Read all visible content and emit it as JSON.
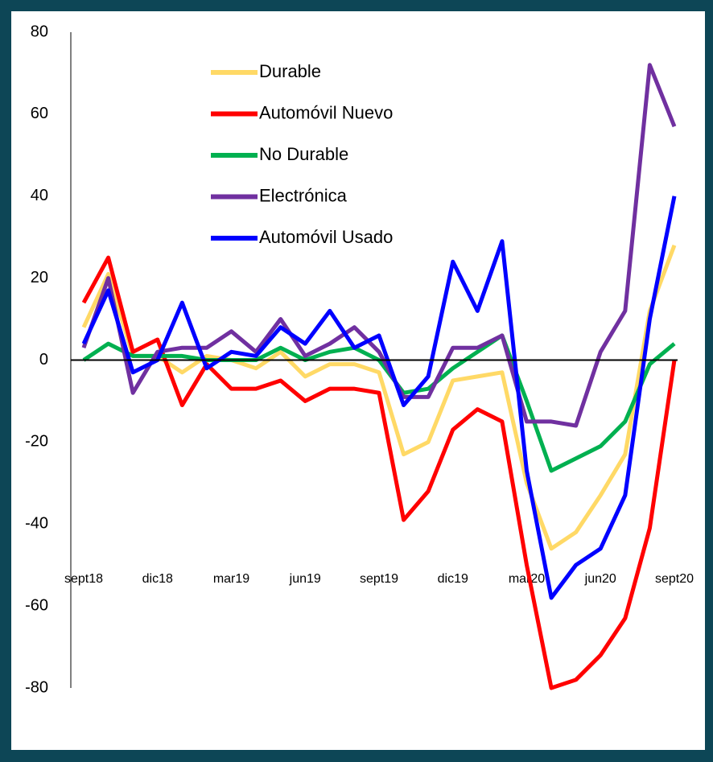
{
  "chart_data": {
    "type": "line",
    "categories": [
      "sept18",
      null,
      null,
      "dic18",
      null,
      null,
      "mar19",
      null,
      null,
      "jun19",
      null,
      null,
      "sept19",
      null,
      null,
      "dic19",
      null,
      null,
      "mar20",
      null,
      null,
      "jun20",
      null,
      null,
      "sept20"
    ],
    "series": [
      {
        "name": "Durable",
        "color": "#ffd966",
        "values": [
          8,
          21,
          1,
          1,
          -3,
          1,
          0,
          -2,
          2,
          -4,
          -1,
          -1,
          -3,
          -23,
          -20,
          -5,
          -4,
          -3,
          -30,
          -46,
          -42,
          -33,
          -23,
          12,
          28
        ]
      },
      {
        "name": "Automóvil Nuevo",
        "color": "#ff0000",
        "values": [
          14,
          25,
          2,
          5,
          -11,
          -1,
          -7,
          -7,
          -5,
          -10,
          -7,
          -7,
          -8,
          -39,
          -32,
          -17,
          -12,
          -15,
          -50,
          -80,
          -78,
          -72,
          -63,
          -41,
          0
        ]
      },
      {
        "name": "No Durable",
        "color": "#00b050",
        "values": [
          0,
          4,
          1,
          1,
          1,
          0,
          0,
          0,
          3,
          0,
          2,
          3,
          0,
          -8,
          -7,
          -2,
          2,
          6,
          -10,
          -27,
          -24,
          -21,
          -15,
          -1,
          4
        ]
      },
      {
        "name": "Electrónica",
        "color": "#7030a0",
        "values": [
          3,
          20,
          -8,
          2,
          3,
          3,
          7,
          2,
          10,
          1,
          4,
          8,
          2,
          -9,
          -9,
          3,
          3,
          6,
          -15,
          -15,
          -16,
          2,
          12,
          72,
          57
        ]
      },
      {
        "name": "Automóvil Usado",
        "color": "#0000ff",
        "values": [
          4,
          17,
          -3,
          0,
          14,
          -2,
          2,
          1,
          8,
          4,
          12,
          3,
          6,
          -11,
          -4,
          24,
          12,
          29,
          -27,
          -58,
          -50,
          -46,
          -33,
          10,
          40
        ]
      }
    ],
    "ylim": [
      -80,
      80
    ],
    "yticks": [
      -80,
      -60,
      -40,
      -20,
      0,
      20,
      40,
      60,
      80
    ],
    "grid": false
  }
}
